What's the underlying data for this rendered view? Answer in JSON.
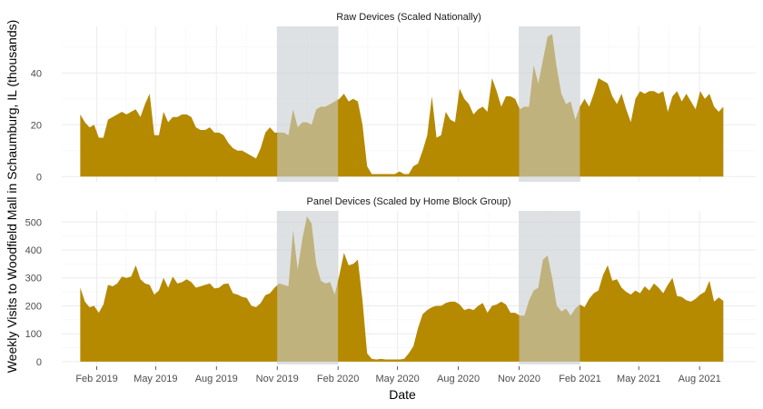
{
  "chart_data": {
    "type": "area",
    "xlabel": "Date",
    "ylabel": "Weekly Visits to Woodfield Mall in Schaumburg, IL (thousands)",
    "x_ticks": [
      "Feb 2019",
      "May 2019",
      "Aug 2019",
      "Nov 2019",
      "Feb 2020",
      "May 2020",
      "Aug 2020",
      "Nov 2020",
      "Feb 2021",
      "May 2021",
      "Aug 2021"
    ],
    "x_tick_dates": [
      "2019-02-01",
      "2019-05-01",
      "2019-08-01",
      "2019-11-01",
      "2020-02-01",
      "2020-05-01",
      "2020-08-01",
      "2020-11-01",
      "2021-02-01",
      "2021-05-01",
      "2021-08-01"
    ],
    "xlim": [
      "2018-12-10",
      "2021-10-25"
    ],
    "fill_color": "#b58900",
    "shade_color": "#c8cdd1",
    "shaded_periods": [
      {
        "start": "2019-11-01",
        "end": "2020-02-01"
      },
      {
        "start": "2020-11-01",
        "end": "2021-02-01"
      }
    ],
    "grid": true,
    "panels": [
      {
        "title": "Raw Devices (Scaled Nationally)",
        "ylim": [
          -2,
          58
        ],
        "yticks": [
          0,
          20,
          40
        ],
        "start_date": "2019-01-07",
        "interval_days": 7,
        "values": [
          24,
          21,
          19,
          20,
          15,
          15,
          22,
          23,
          24,
          25,
          24,
          25,
          26,
          23,
          28,
          32,
          16,
          16,
          25,
          21,
          23,
          23,
          24,
          24,
          23,
          19,
          18,
          18,
          19,
          17,
          17,
          16,
          13,
          11,
          10,
          10,
          9,
          8,
          7,
          11,
          17,
          19,
          17,
          17,
          17,
          16,
          26,
          19,
          21,
          21,
          20,
          26,
          27,
          27,
          28,
          29,
          30,
          32,
          29,
          30,
          29,
          20,
          4,
          1,
          1,
          1,
          1,
          1,
          1,
          2,
          1,
          1,
          4,
          5,
          10,
          16,
          31,
          15,
          16,
          25,
          22,
          21,
          34,
          30,
          28,
          24,
          26,
          27,
          25,
          38,
          33,
          27,
          31,
          31,
          30,
          26,
          27,
          27,
          43,
          36,
          45,
          54,
          55,
          42,
          32,
          28,
          29,
          22,
          27,
          30,
          27,
          32,
          38,
          37,
          36,
          31,
          28,
          32,
          26,
          21,
          30,
          33,
          32,
          33,
          33,
          32,
          33,
          25,
          31,
          33,
          29,
          32,
          29,
          26,
          33,
          30,
          32,
          27,
          25,
          27
        ]
      },
      {
        "title": "Panel Devices (Scaled by Home Block Group)",
        "ylim": [
          -10,
          540
        ],
        "yticks": [
          0,
          100,
          200,
          300,
          400,
          500
        ],
        "start_date": "2019-01-07",
        "interval_days": 7,
        "values": [
          265,
          215,
          195,
          200,
          175,
          205,
          275,
          270,
          280,
          305,
          300,
          305,
          345,
          295,
          280,
          275,
          240,
          255,
          300,
          265,
          305,
          280,
          285,
          295,
          285,
          265,
          270,
          275,
          280,
          262,
          265,
          278,
          280,
          245,
          240,
          232,
          228,
          200,
          195,
          210,
          238,
          245,
          265,
          280,
          275,
          270,
          470,
          330,
          440,
          520,
          495,
          350,
          290,
          280,
          285,
          240,
          310,
          390,
          345,
          350,
          365,
          220,
          30,
          10,
          8,
          10,
          8,
          8,
          8,
          8,
          10,
          30,
          55,
          120,
          170,
          185,
          195,
          200,
          200,
          210,
          215,
          215,
          205,
          185,
          190,
          185,
          200,
          210,
          175,
          200,
          205,
          215,
          205,
          175,
          175,
          165,
          165,
          220,
          255,
          265,
          365,
          380,
          300,
          200,
          180,
          190,
          165,
          190,
          205,
          195,
          225,
          245,
          255,
          310,
          345,
          290,
          295,
          265,
          250,
          240,
          255,
          245,
          270,
          255,
          280,
          265,
          245,
          275,
          300,
          235,
          232,
          220,
          215,
          225,
          240,
          250,
          290,
          215,
          230,
          218
        ]
      }
    ]
  }
}
